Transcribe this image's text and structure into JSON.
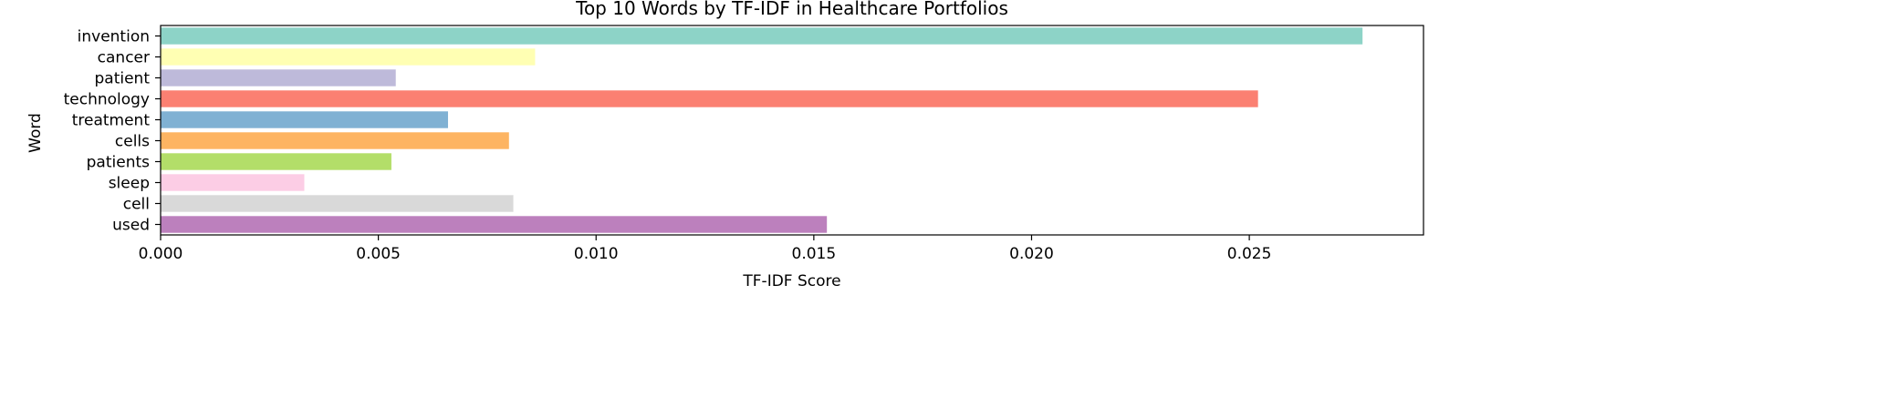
{
  "chart_data": {
    "type": "bar",
    "orientation": "horizontal",
    "title": "Top 10 Words by TF-IDF in Healthcare Portfolios",
    "xlabel": "TF-IDF Score",
    "ylabel": "Word",
    "categories": [
      "invention",
      "cancer",
      "patient",
      "technology",
      "treatment",
      "cells",
      "patients",
      "sleep",
      "cell",
      "used"
    ],
    "values": [
      0.0276,
      0.0086,
      0.0054,
      0.0252,
      0.0066,
      0.008,
      0.0053,
      0.0033,
      0.0081,
      0.0153
    ],
    "colors": [
      "#8dd3c7",
      "#ffffb3",
      "#bebada",
      "#fb8072",
      "#80b1d3",
      "#fdb462",
      "#b3de69",
      "#fccde5",
      "#d9d9d9",
      "#bc80bd"
    ],
    "xlim": [
      0,
      0.029
    ],
    "xticks": [
      "0.000",
      "0.005",
      "0.010",
      "0.015",
      "0.020",
      "0.025"
    ],
    "grid": false,
    "legend": "none"
  }
}
